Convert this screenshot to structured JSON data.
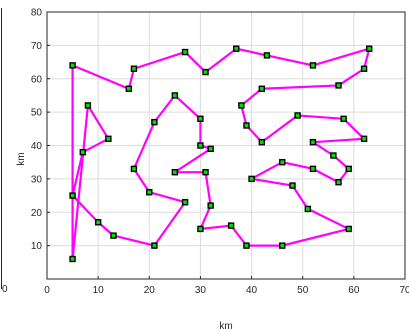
{
  "chart_data": {
    "type": "line",
    "xlabel": "km",
    "ylabel": "km",
    "xlim": [
      0,
      70
    ],
    "ylim": [
      0,
      80
    ],
    "xticks": [
      "0",
      "10",
      "20",
      "30",
      "40",
      "50",
      "60",
      "70"
    ],
    "yticks": [
      "10",
      "20",
      "30",
      "40",
      "50",
      "60",
      "70",
      "80"
    ],
    "left_panel_tick": "0",
    "grid": true,
    "line_color": "#ff00ff",
    "marker_color": "#00e000",
    "marker_edge_color": "#000000",
    "closed": true,
    "points": [
      [
        5,
        64
      ],
      [
        16,
        57
      ],
      [
        17,
        63
      ],
      [
        27,
        68
      ],
      [
        31,
        62
      ],
      [
        37,
        69
      ],
      [
        43,
        67
      ],
      [
        52,
        64
      ],
      [
        63,
        69
      ],
      [
        62,
        63
      ],
      [
        57,
        58
      ],
      [
        42,
        57
      ],
      [
        38,
        52
      ],
      [
        39,
        46
      ],
      [
        42,
        41
      ],
      [
        49,
        49
      ],
      [
        58,
        48
      ],
      [
        62,
        42
      ],
      [
        52,
        41
      ],
      [
        56,
        37
      ],
      [
        59,
        33
      ],
      [
        57,
        29
      ],
      [
        52,
        33
      ],
      [
        46,
        35
      ],
      [
        40,
        30
      ],
      [
        48,
        28
      ],
      [
        51,
        21
      ],
      [
        59,
        15
      ],
      [
        46,
        10
      ],
      [
        39,
        10
      ],
      [
        36,
        16
      ],
      [
        30,
        15
      ],
      [
        32,
        22
      ],
      [
        31,
        32
      ],
      [
        25,
        32
      ],
      [
        32,
        39
      ],
      [
        30,
        40
      ],
      [
        30,
        48
      ],
      [
        25,
        55
      ],
      [
        21,
        47
      ],
      [
        17,
        33
      ],
      [
        20,
        26
      ],
      [
        27,
        23
      ],
      [
        21,
        10
      ],
      [
        13,
        13
      ],
      [
        10,
        17
      ],
      [
        5,
        25
      ],
      [
        7,
        38
      ],
      [
        12,
        42
      ],
      [
        8,
        52
      ],
      [
        5,
        6
      ]
    ]
  }
}
